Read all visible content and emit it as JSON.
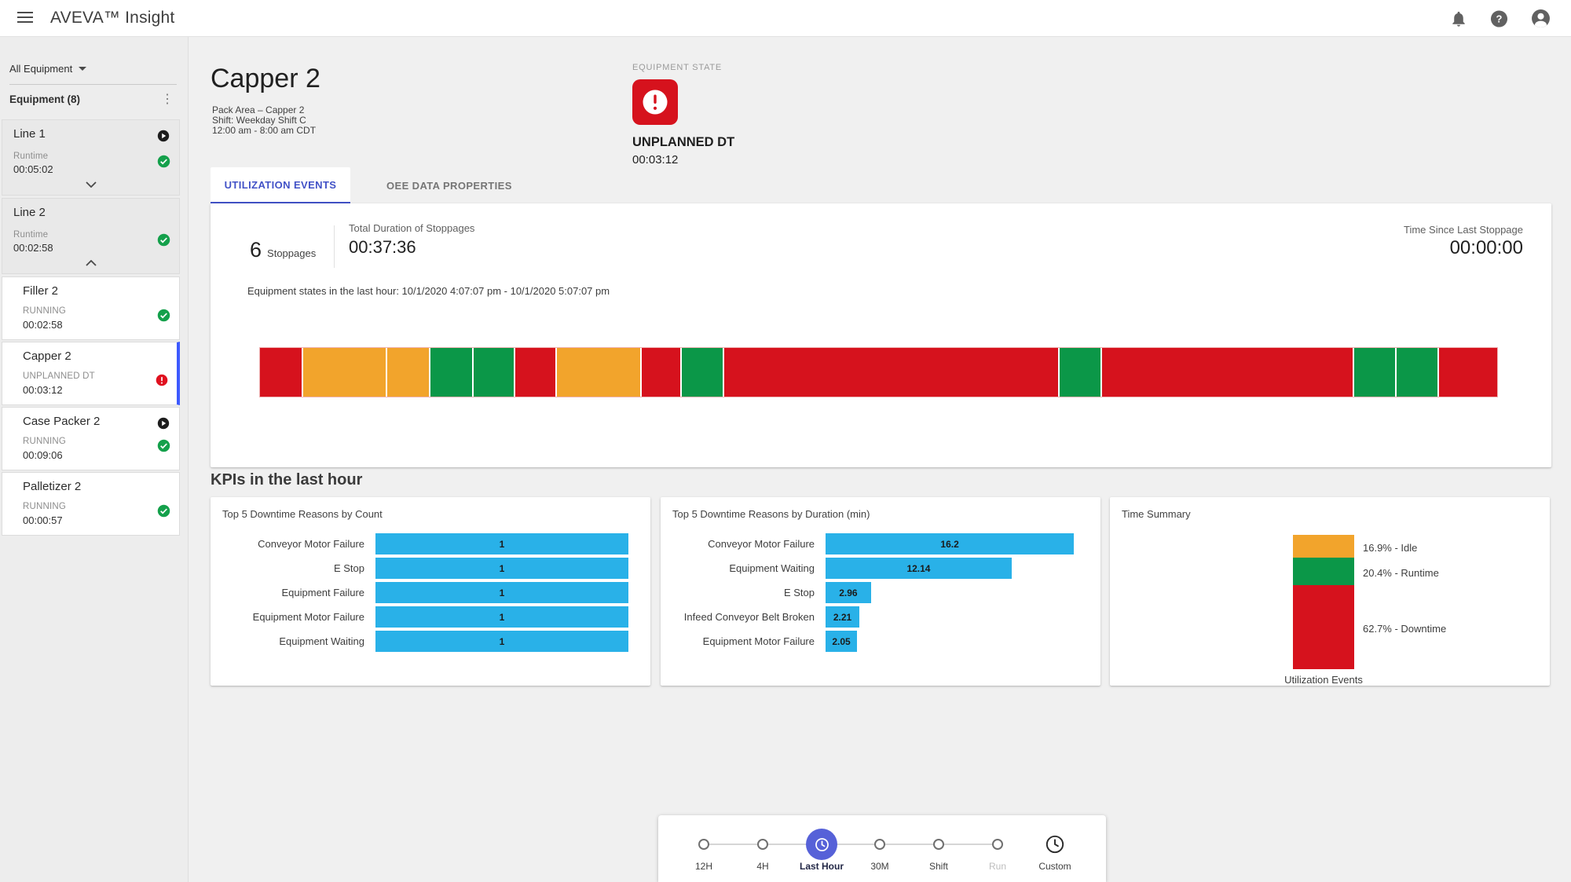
{
  "app_bar": {
    "title": "AVEVA™ Insight",
    "icons": {
      "menu": "hamburger-menu-icon",
      "notifications": "bell-icon",
      "help": "help-icon",
      "account": "account-circle-icon"
    }
  },
  "sidebar": {
    "filter_label": "All Equipment",
    "group_label": "Equipment (8)",
    "items": [
      {
        "name": "Line 1",
        "type": "parent",
        "status_label": "Runtime",
        "time": "00:05:02",
        "control_icon": "play-circle",
        "status_icon": "check",
        "expand_icon": "chevron-down",
        "selected": false
      },
      {
        "name": "Line 2",
        "type": "parent",
        "status_label": "Runtime",
        "time": "00:02:58",
        "control_icon": "stop-square",
        "status_icon": "check",
        "expand_icon": "chevron-up",
        "selected": false
      },
      {
        "name": "Filler 2",
        "type": "child",
        "status_label": "RUNNING",
        "time": "00:02:58",
        "control_icon": "stop-square",
        "status_icon": "check",
        "selected": false
      },
      {
        "name": "Capper 2",
        "type": "child",
        "status_label": "UNPLANNED DT",
        "time": "00:03:12",
        "control_icon": "none",
        "status_icon": "error",
        "selected": true
      },
      {
        "name": "Case Packer 2",
        "type": "child",
        "status_label": "RUNNING",
        "time": "00:09:06",
        "control_icon": "play-circle",
        "status_icon": "check",
        "selected": false
      },
      {
        "name": "Palletizer 2",
        "type": "child",
        "status_label": "RUNNING",
        "time": "00:00:57",
        "control_icon": "stop-square",
        "status_icon": "check",
        "selected": false
      }
    ]
  },
  "header": {
    "title": "Capper 2",
    "subtitle_lines": [
      "Pack Area – Capper 2",
      "Shift: Weekday Shift C",
      "12:00 am - 8:00 am CDT"
    ],
    "equipment_state": {
      "label": "EQUIPMENT STATE",
      "state": "UNPLANNED DT",
      "duration": "00:03:12",
      "icon": "alert-rounded-square"
    }
  },
  "tabs": [
    {
      "label": "UTILIZATION EVENTS",
      "active": true
    },
    {
      "label": "OEE DATA PROPERTIES",
      "active": false
    }
  ],
  "stoppages_panel": {
    "count": "6",
    "count_label": "Stoppages",
    "total_label": "Total Duration of Stoppages",
    "total_value": "00:37:36",
    "since_label": "Time Since Last Stoppage",
    "since_value": "00:00:00",
    "note": "Equipment states in the last hour: 10/1/2020 4:07:07 pm - 10/1/2020 5:07:07 pm"
  },
  "kpis": {
    "heading": "KPIs in the last hour"
  },
  "chart_data": [
    {
      "type": "bar",
      "orientation": "horizontal",
      "title": "Top 5 Downtime Reasons by Count",
      "categories": [
        "Conveyor Motor Failure",
        "E Stop",
        "Equipment Failure",
        "Equipment Motor Failure",
        "Equipment Waiting"
      ],
      "values": [
        1,
        1,
        1,
        1,
        1
      ],
      "xlim": [
        0,
        1
      ],
      "bar_color": "#29b1e8",
      "grid": false,
      "legend": false
    },
    {
      "type": "bar",
      "orientation": "horizontal",
      "title": "Top 5 Downtime Reasons by Duration (min)",
      "categories": [
        "Conveyor Motor Failure",
        "Equipment Waiting",
        "E Stop",
        "Infeed Conveyor Belt Broken",
        "Equipment Motor Failure"
      ],
      "values": [
        16.2,
        12.14,
        2.96,
        2.21,
        2.05
      ],
      "xlim": [
        0,
        16.5
      ],
      "bar_color": "#29b1e8",
      "grid": false,
      "legend": false
    },
    {
      "type": "stacked-bar",
      "title": "Time Summary",
      "xlabel": "Utilization Events",
      "segments": [
        {
          "label": "16.9% - Idle",
          "pct": 16.9,
          "color": "#f2a42c"
        },
        {
          "label": "20.4% - Runtime",
          "pct": 20.4,
          "color": "#0b9748"
        },
        {
          "label": "62.7% - Downtime",
          "pct": 62.7,
          "color": "#d6121d"
        }
      ],
      "legend_position": "right"
    },
    {
      "type": "timeline",
      "title": "Equipment states in the last hour",
      "range": "10/1/2020 4:07:07 pm - 10/1/2020 5:07:07 pm",
      "segments": [
        {
          "state": "downtime",
          "pct": 3.4
        },
        {
          "state": "idle",
          "pct": 6.8
        },
        {
          "state": "idle",
          "pct": 3.4
        },
        {
          "state": "runtime",
          "pct": 3.4
        },
        {
          "state": "runtime",
          "pct": 3.3
        },
        {
          "state": "downtime",
          "pct": 3.3
        },
        {
          "state": "idle",
          "pct": 6.8
        },
        {
          "state": "downtime",
          "pct": 3.2
        },
        {
          "state": "runtime",
          "pct": 3.3
        },
        {
          "state": "downtime",
          "pct": 27.4
        },
        {
          "state": "runtime",
          "pct": 3.4
        },
        {
          "state": "downtime",
          "pct": 20.5
        },
        {
          "state": "runtime",
          "pct": 3.4
        },
        {
          "state": "runtime",
          "pct": 3.3
        },
        {
          "state": "downtime",
          "pct": 4.8
        }
      ]
    }
  ],
  "time_selector": {
    "options": [
      {
        "label": "12H",
        "active": false
      },
      {
        "label": "4H",
        "active": false
      },
      {
        "label": "Last Hour",
        "active": true,
        "icon": "clock"
      },
      {
        "label": "30M",
        "active": false
      },
      {
        "label": "Shift",
        "active": false
      },
      {
        "label": "Run",
        "active": false,
        "disabled": true
      },
      {
        "label": "Custom",
        "active": false,
        "icon": "clock"
      }
    ]
  },
  "colors": {
    "downtime": "#d6121d",
    "idle": "#f2a42c",
    "runtime": "#0b9748",
    "bar_blue": "#29b1e8",
    "accent_indigo": "#4252c7",
    "active_step": "#5661d8",
    "selected_border": "#3d5afe",
    "check_green": "#14a04b",
    "error_red": "#e0111f"
  }
}
